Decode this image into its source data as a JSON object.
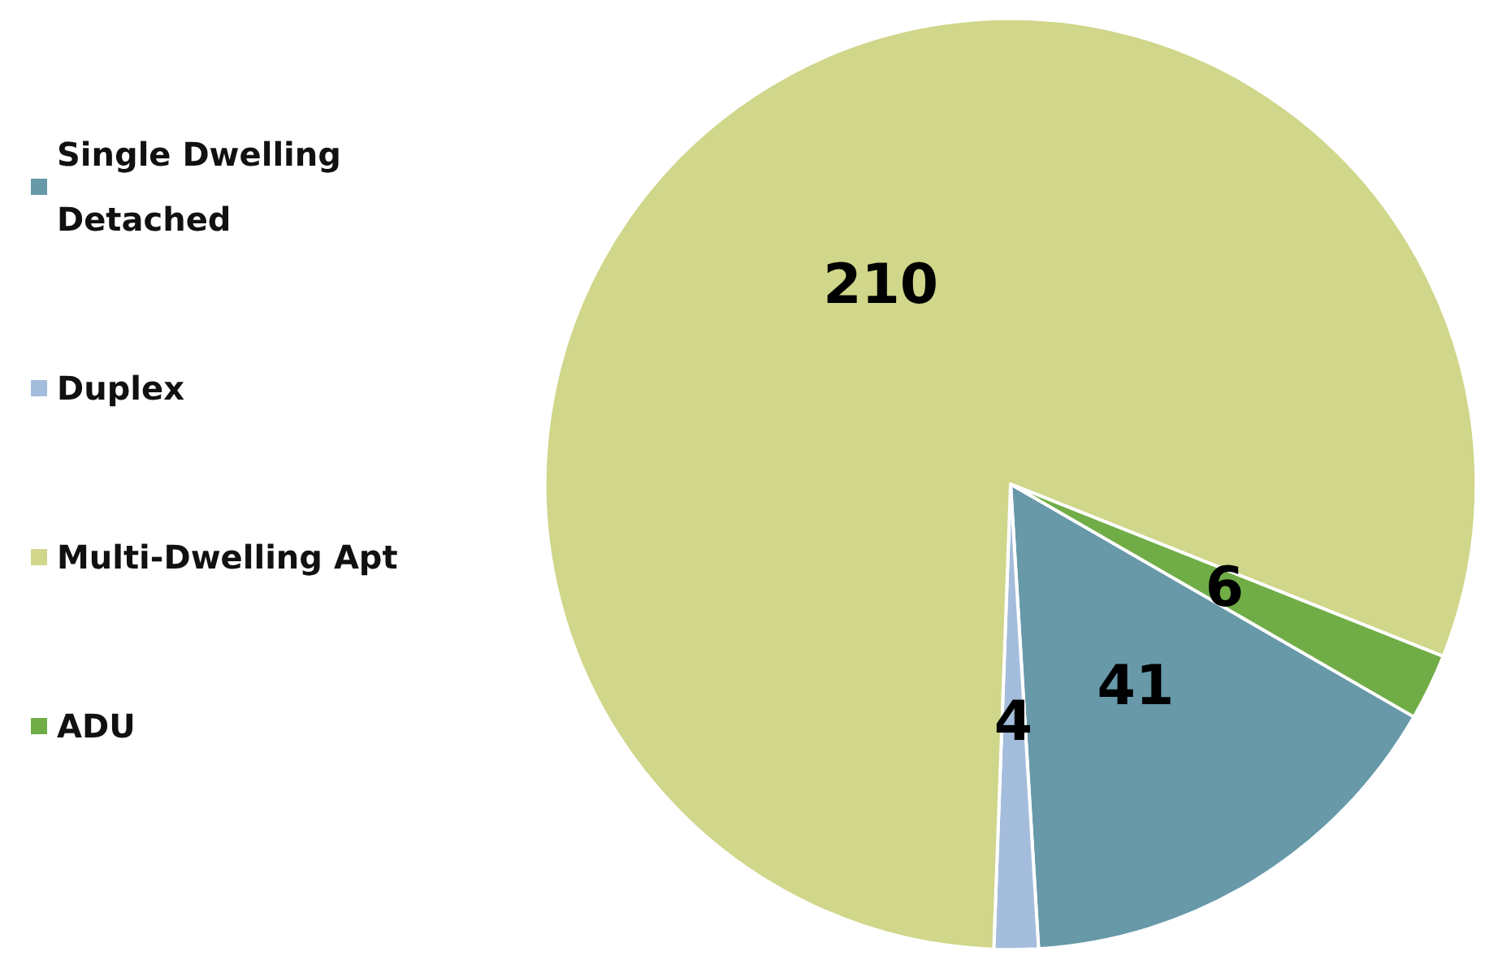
{
  "chart_data": {
    "type": "pie",
    "categories": [
      "Single Dwelling Detached",
      "Duplex",
      "Multi-Dwelling Apt",
      "ADU"
    ],
    "values": [
      41,
      4,
      210,
      6
    ],
    "colors": [
      "#6799a9",
      "#a5bddc",
      "#d0d68a",
      "#70ad47"
    ],
    "data_labels": true,
    "legend": "left"
  }
}
